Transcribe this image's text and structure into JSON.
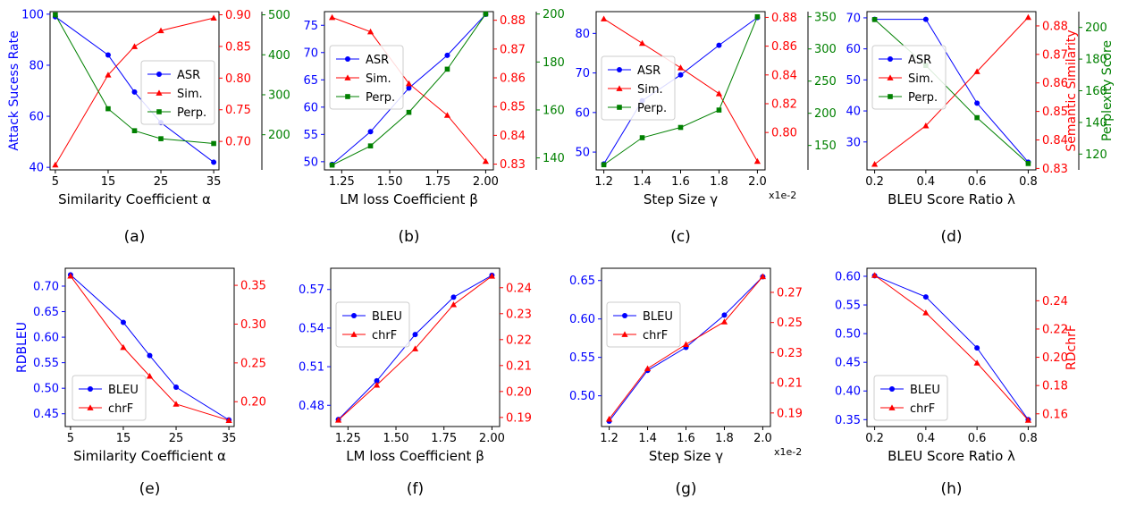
{
  "colors": {
    "blue": "#0000ff",
    "red": "#ff0000",
    "green": "#008000",
    "axis": "#000000"
  },
  "chart_data": [
    {
      "type": "line",
      "caption": "(a)",
      "xlabel": "Similarity Coefficient α",
      "x": [
        5,
        15,
        20,
        25,
        35
      ],
      "xlim": [
        4,
        36
      ],
      "xticks": [
        5,
        15,
        25,
        35
      ],
      "xtick_labels": [
        "5",
        "15",
        "25",
        "35"
      ],
      "axes": [
        {
          "side": "left",
          "color": "blue",
          "label": "Attack Sucess Rate",
          "lim": [
            39,
            101
          ],
          "ticks": [
            40,
            60,
            80,
            100
          ],
          "tick_labels": [
            "40",
            "60",
            "80",
            "100"
          ]
        },
        {
          "side": "right",
          "color": "red",
          "label": "",
          "lim": [
            0.655,
            0.905
          ],
          "ticks": [
            0.7,
            0.75,
            0.8,
            0.85,
            0.9
          ],
          "tick_labels": [
            "0.70",
            "0.75",
            "0.80",
            "0.85",
            "0.90"
          ]
        },
        {
          "side": "right2",
          "color": "green",
          "label": "",
          "lim": [
            112,
            508
          ],
          "ticks": [
            200,
            300,
            400,
            500
          ],
          "tick_labels": [
            "200",
            "300",
            "400",
            "500"
          ]
        }
      ],
      "series": [
        {
          "name": "ASR",
          "axis": 0,
          "color": "blue",
          "marker": "circle",
          "values": [
            99,
            84,
            69.5,
            57.5,
            42
          ]
        },
        {
          "name": "Sim.",
          "axis": 1,
          "color": "red",
          "marker": "triangle",
          "values": [
            0.663,
            0.805,
            0.85,
            0.875,
            0.895
          ]
        },
        {
          "name": "Perp.",
          "axis": 2,
          "color": "green",
          "marker": "square",
          "values": [
            500,
            265,
            210,
            190,
            178
          ]
        }
      ],
      "legend": "center-right"
    },
    {
      "type": "line",
      "caption": "(b)",
      "xlabel": "LM loss Coefficient β",
      "x": [
        1.2,
        1.4,
        1.6,
        1.8,
        2.0
      ],
      "xlim": [
        1.16,
        2.04
      ],
      "xticks": [
        1.25,
        1.5,
        1.75,
        2.0
      ],
      "xtick_labels": [
        "1.25",
        "1.50",
        "1.75",
        "2.00"
      ],
      "axes": [
        {
          "side": "left",
          "color": "blue",
          "label": "",
          "lim": [
            48.5,
            77.5
          ],
          "ticks": [
            50,
            55,
            60,
            65,
            70,
            75
          ],
          "tick_labels": [
            "50",
            "55",
            "60",
            "65",
            "70",
            "75"
          ]
        },
        {
          "side": "right",
          "color": "red",
          "label": "",
          "lim": [
            0.828,
            0.883
          ],
          "ticks": [
            0.83,
            0.84,
            0.85,
            0.86,
            0.87,
            0.88
          ],
          "tick_labels": [
            "0.83",
            "0.84",
            "0.85",
            "0.86",
            "0.87",
            "0.88"
          ]
        },
        {
          "side": "right2",
          "color": "green",
          "label": "",
          "lim": [
            135,
            201
          ],
          "ticks": [
            140,
            160,
            180,
            200
          ],
          "tick_labels": [
            "140",
            "160",
            "180",
            "200"
          ]
        }
      ],
      "series": [
        {
          "name": "ASR",
          "axis": 0,
          "color": "blue",
          "marker": "circle",
          "values": [
            49.5,
            55.5,
            63.5,
            69.5,
            77
          ]
        },
        {
          "name": "Sim.",
          "axis": 1,
          "color": "red",
          "marker": "triangle",
          "values": [
            0.881,
            0.876,
            0.858,
            0.847,
            0.831
          ]
        },
        {
          "name": "Perp.",
          "axis": 2,
          "color": "green",
          "marker": "square",
          "values": [
            137,
            145,
            159,
            177,
            200
          ]
        }
      ],
      "legend": "top-left"
    },
    {
      "type": "line",
      "caption": "(c)",
      "xlabel": "Step Size γ",
      "x": [
        1.2,
        1.4,
        1.6,
        1.8,
        2.0
      ],
      "xlim": [
        1.16,
        2.04
      ],
      "xticks": [
        1.2,
        1.4,
        1.6,
        1.8,
        2.0
      ],
      "xtick_labels": [
        "1.2",
        "1.4",
        "1.6",
        "1.8",
        "2.0"
      ],
      "x_multiplier": "x1e-2",
      "axes": [
        {
          "side": "left",
          "color": "blue",
          "label": "",
          "lim": [
            45.5,
            85.5
          ],
          "ticks": [
            50,
            60,
            70,
            80
          ],
          "tick_labels": [
            "50",
            "60",
            "70",
            "80"
          ]
        },
        {
          "side": "right",
          "color": "red",
          "label": "",
          "lim": [
            0.774,
            0.884
          ],
          "ticks": [
            0.8,
            0.82,
            0.84,
            0.86,
            0.88
          ],
          "tick_labels": [
            "0.80",
            "0.82",
            "0.84",
            "0.86",
            "0.88"
          ]
        },
        {
          "side": "right2",
          "color": "green",
          "label": "",
          "lim": [
            112,
            358
          ],
          "ticks": [
            150,
            200,
            250,
            300,
            350
          ],
          "tick_labels": [
            "150",
            "200",
            "250",
            "300",
            "350"
          ]
        }
      ],
      "series": [
        {
          "name": "ASR",
          "axis": 0,
          "color": "blue",
          "marker": "circle",
          "values": [
            47,
            63,
            69.5,
            77,
            84
          ]
        },
        {
          "name": "Sim.",
          "axis": 1,
          "color": "red",
          "marker": "triangle",
          "values": [
            0.879,
            0.862,
            0.845,
            0.827,
            0.78
          ]
        },
        {
          "name": "Perp.",
          "axis": 2,
          "color": "green",
          "marker": "square",
          "values": [
            120,
            162,
            178,
            205,
            350
          ]
        }
      ],
      "legend": "center-left"
    },
    {
      "type": "line",
      "caption": "(d)",
      "xlabel": "BLEU Score Ratio λ",
      "x": [
        0.2,
        0.4,
        0.6,
        0.8
      ],
      "xlim": [
        0.17,
        0.83
      ],
      "xticks": [
        0.2,
        0.4,
        0.6,
        0.8
      ],
      "xtick_labels": [
        "0.2",
        "0.4",
        "0.6",
        "0.8"
      ],
      "axes": [
        {
          "side": "left",
          "color": "blue",
          "label": "",
          "lim": [
            21,
            72
          ],
          "ticks": [
            30,
            40,
            50,
            60,
            70
          ],
          "tick_labels": [
            "30",
            "40",
            "50",
            "60",
            "70"
          ]
        },
        {
          "side": "right",
          "color": "red",
          "label": "Semantic Similarity",
          "lim": [
            0.8295,
            0.885
          ],
          "ticks": [
            0.83,
            0.84,
            0.85,
            0.86,
            0.87,
            0.88
          ],
          "tick_labels": [
            "0.83",
            "0.84",
            "0.85",
            "0.86",
            "0.87",
            "0.88"
          ]
        },
        {
          "side": "right2",
          "color": "green",
          "label": "Perplexity Score",
          "lim": [
            110,
            210
          ],
          "ticks": [
            120,
            140,
            160,
            180,
            200
          ],
          "tick_labels": [
            "120",
            "140",
            "160",
            "180",
            "200"
          ]
        }
      ],
      "series": [
        {
          "name": "ASR",
          "axis": 0,
          "color": "blue",
          "marker": "circle",
          "values": [
            69.5,
            69.5,
            42.5,
            23.5
          ]
        },
        {
          "name": "Sim.",
          "axis": 1,
          "color": "red",
          "marker": "triangle",
          "values": [
            0.8315,
            0.845,
            0.864,
            0.883
          ]
        },
        {
          "name": "Perp.",
          "axis": 2,
          "color": "green",
          "marker": "square",
          "values": [
            205,
            176,
            143,
            114
          ]
        }
      ],
      "legend": "top-left"
    },
    {
      "type": "line",
      "caption": "(e)",
      "xlabel": "Similarity Coefficient α",
      "x": [
        5,
        15,
        20,
        25,
        35
      ],
      "xlim": [
        4,
        36
      ],
      "xticks": [
        5,
        15,
        25,
        35
      ],
      "xtick_labels": [
        "5",
        "15",
        "25",
        "35"
      ],
      "axes": [
        {
          "side": "left",
          "color": "blue",
          "label": "RDBLEU",
          "lim": [
            0.425,
            0.735
          ],
          "ticks": [
            0.45,
            0.5,
            0.55,
            0.6,
            0.65,
            0.7
          ],
          "tick_labels": [
            "0.45",
            "0.50",
            "0.55",
            "0.60",
            "0.65",
            "0.70"
          ]
        },
        {
          "side": "right",
          "color": "red",
          "label": "",
          "lim": [
            0.168,
            0.372
          ],
          "ticks": [
            0.2,
            0.25,
            0.3,
            0.35
          ],
          "tick_labels": [
            "0.20",
            "0.25",
            "0.30",
            "0.35"
          ]
        }
      ],
      "series": [
        {
          "name": "BLEU",
          "axis": 0,
          "color": "blue",
          "marker": "circle",
          "values": [
            0.722,
            0.629,
            0.564,
            0.502,
            0.438
          ]
        },
        {
          "name": "chrF",
          "axis": 1,
          "color": "red",
          "marker": "triangle",
          "values": [
            0.362,
            0.27,
            0.233,
            0.197,
            0.176
          ]
        }
      ],
      "legend": "bottom-left"
    },
    {
      "type": "line",
      "caption": "(f)",
      "xlabel": "LM loss Coefficient β",
      "x": [
        1.2,
        1.4,
        1.6,
        1.8,
        2.0
      ],
      "xlim": [
        1.16,
        2.04
      ],
      "xticks": [
        1.25,
        1.5,
        1.75,
        2.0
      ],
      "xtick_labels": [
        "1.25",
        "1.50",
        "1.75",
        "2.00"
      ],
      "axes": [
        {
          "side": "left",
          "color": "blue",
          "label": "",
          "lim": [
            0.4635,
            0.5865
          ],
          "ticks": [
            0.48,
            0.51,
            0.54,
            0.57
          ],
          "tick_labels": [
            "0.48",
            "0.51",
            "0.54",
            "0.57"
          ]
        },
        {
          "side": "right",
          "color": "red",
          "label": "",
          "lim": [
            0.1865,
            0.2475
          ],
          "ticks": [
            0.19,
            0.2,
            0.21,
            0.22,
            0.23,
            0.24
          ],
          "tick_labels": [
            "0.19",
            "0.20",
            "0.21",
            "0.22",
            "0.23",
            "0.24"
          ]
        }
      ],
      "series": [
        {
          "name": "BLEU",
          "axis": 0,
          "color": "blue",
          "marker": "circle",
          "values": [
            0.469,
            0.499,
            0.535,
            0.564,
            0.581
          ]
        },
        {
          "name": "chrF",
          "axis": 1,
          "color": "red",
          "marker": "triangle",
          "values": [
            0.189,
            0.2025,
            0.2165,
            0.2335,
            0.2445
          ]
        }
      ],
      "legend": "top-left"
    },
    {
      "type": "line",
      "caption": "(g)",
      "xlabel": "Step Size γ",
      "x": [
        1.2,
        1.4,
        1.6,
        1.8,
        2.0
      ],
      "xlim": [
        1.16,
        2.04
      ],
      "xticks": [
        1.2,
        1.4,
        1.6,
        1.8,
        2.0
      ],
      "xtick_labels": [
        "1.2",
        "1.4",
        "1.6",
        "1.8",
        "2.0"
      ],
      "x_multiplier": "x1e-2",
      "axes": [
        {
          "side": "left",
          "color": "blue",
          "label": "",
          "lim": [
            0.46,
            0.666
          ],
          "ticks": [
            0.5,
            0.55,
            0.6,
            0.65
          ],
          "tick_labels": [
            "0.50",
            "0.55",
            "0.60",
            "0.65"
          ]
        },
        {
          "side": "right",
          "color": "red",
          "label": "",
          "lim": [
            0.181,
            0.286
          ],
          "ticks": [
            0.19,
            0.21,
            0.23,
            0.25,
            0.27
          ],
          "tick_labels": [
            "0.19",
            "0.21",
            "0.23",
            "0.25",
            "0.27"
          ]
        }
      ],
      "series": [
        {
          "name": "BLEU",
          "axis": 0,
          "color": "blue",
          "marker": "circle",
          "values": [
            0.467,
            0.533,
            0.563,
            0.605,
            0.655
          ]
        },
        {
          "name": "chrF",
          "axis": 1,
          "color": "red",
          "marker": "triangle",
          "values": [
            0.186,
            0.2195,
            0.2355,
            0.2505,
            0.2805
          ]
        }
      ],
      "legend": "top-left"
    },
    {
      "type": "line",
      "caption": "(h)",
      "xlabel": "BLEU Score Ratio λ",
      "x": [
        0.2,
        0.4,
        0.6,
        0.8
      ],
      "xlim": [
        0.17,
        0.83
      ],
      "xticks": [
        0.2,
        0.4,
        0.6,
        0.8
      ],
      "xtick_labels": [
        "0.2",
        "0.4",
        "0.6",
        "0.8"
      ],
      "axes": [
        {
          "side": "left",
          "color": "blue",
          "label": "",
          "lim": [
            0.338,
            0.614
          ],
          "ticks": [
            0.35,
            0.4,
            0.45,
            0.5,
            0.55,
            0.6
          ],
          "tick_labels": [
            "0.35",
            "0.40",
            "0.45",
            "0.50",
            "0.55",
            "0.60"
          ]
        },
        {
          "side": "right",
          "color": "red",
          "label": "RDchrF",
          "lim": [
            0.151,
            0.263
          ],
          "ticks": [
            0.16,
            0.18,
            0.2,
            0.22,
            0.24
          ],
          "tick_labels": [
            "0.16",
            "0.18",
            "0.20",
            "0.22",
            "0.24"
          ]
        }
      ],
      "series": [
        {
          "name": "BLEU",
          "axis": 0,
          "color": "blue",
          "marker": "circle",
          "values": [
            0.601,
            0.564,
            0.475,
            0.35
          ]
        },
        {
          "name": "chrF",
          "axis": 1,
          "color": "red",
          "marker": "triangle",
          "values": [
            0.258,
            0.2315,
            0.196,
            0.1555
          ]
        }
      ],
      "legend": "bottom-left"
    }
  ]
}
